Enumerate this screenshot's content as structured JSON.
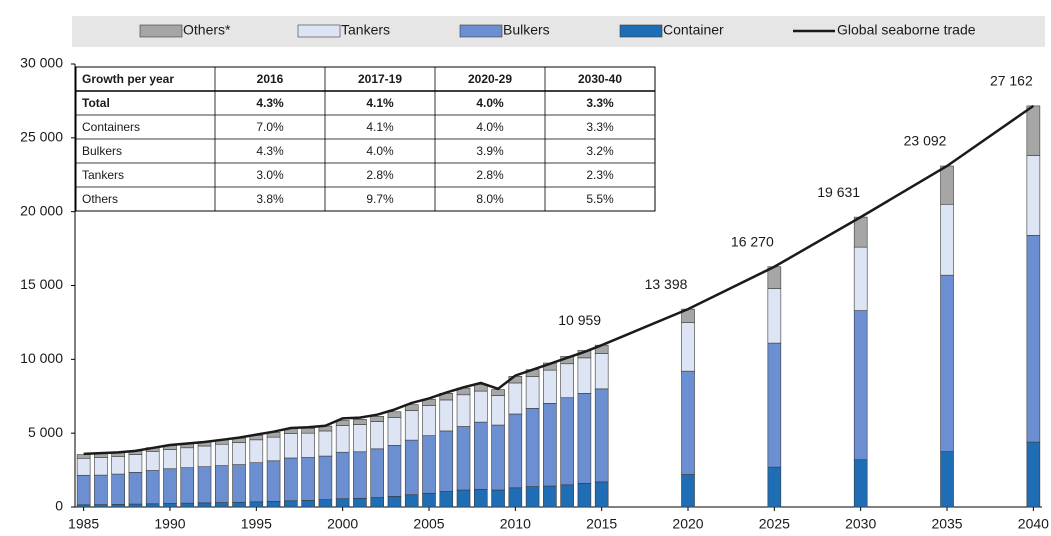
{
  "chart_data": {
    "type": "stacked_bar_line",
    "legend": "top",
    "x": [
      1985,
      1986,
      1987,
      1988,
      1989,
      1990,
      1991,
      1992,
      1993,
      1994,
      1995,
      1996,
      1997,
      1998,
      1999,
      2000,
      2001,
      2002,
      2003,
      2004,
      2005,
      2006,
      2007,
      2008,
      2009,
      2010,
      2011,
      2012,
      2013,
      2014,
      2015,
      2020,
      2025,
      2030,
      2035,
      2040
    ],
    "xlim": [
      1984.5,
      2040.5
    ],
    "xticks": [
      1985,
      1990,
      1995,
      2000,
      2005,
      2010,
      2015,
      2020,
      2025,
      2030,
      2035,
      2040
    ],
    "ylim": [
      0,
      30000
    ],
    "yticks": [
      0,
      {
        "value": 5000,
        "label": "5 000"
      },
      {
        "value": 10000,
        "label": "10 000"
      },
      {
        "value": 15000,
        "label": "15 000"
      },
      {
        "value": 20000,
        "label": "20 000"
      },
      {
        "value": 25000,
        "label": "25 000"
      },
      {
        "value": 30000,
        "label": "30 000"
      }
    ],
    "series": [
      {
        "name": "Container",
        "color": "#1f6db5",
        "values": [
          150,
          160,
          180,
          200,
          220,
          240,
          260,
          280,
          300,
          320,
          350,
          380,
          420,
          450,
          500,
          560,
          590,
          640,
          720,
          830,
          930,
          1050,
          1150,
          1200,
          1150,
          1300,
          1380,
          1420,
          1500,
          1600,
          1700,
          2200,
          2700,
          3200,
          3750,
          4400
        ]
      },
      {
        "name": "Bulkers",
        "color": "#6b8fd0",
        "values": [
          2000,
          2000,
          2050,
          2150,
          2250,
          2350,
          2400,
          2450,
          2500,
          2550,
          2650,
          2750,
          2900,
          2900,
          2950,
          3150,
          3150,
          3300,
          3450,
          3700,
          3900,
          4100,
          4300,
          4550,
          4400,
          5000,
          5300,
          5600,
          5900,
          6100,
          6300,
          7000,
          8400,
          10100,
          11950,
          14000
        ]
      },
      {
        "name": "Tankers",
        "color": "#dde5f4",
        "values": [
          1150,
          1200,
          1200,
          1200,
          1300,
          1300,
          1350,
          1400,
          1450,
          1500,
          1550,
          1600,
          1650,
          1650,
          1700,
          1800,
          1850,
          1850,
          1900,
          2000,
          2050,
          2100,
          2150,
          2100,
          2000,
          2100,
          2150,
          2250,
          2300,
          2400,
          2400,
          3300,
          3700,
          4300,
          4800,
          5400
        ]
      },
      {
        "name": "Others*",
        "color": "#a6a6a6",
        "values": [
          250,
          250,
          250,
          250,
          250,
          280,
          280,
          280,
          300,
          300,
          300,
          320,
          330,
          330,
          330,
          350,
          350,
          350,
          380,
          400,
          420,
          450,
          450,
          450,
          400,
          450,
          470,
          480,
          500,
          500,
          559,
          900,
          1470,
          2031,
          2592,
          3362
        ]
      },
      {
        "name": "Global seaborne trade",
        "color": "#1a1a1a",
        "kind": "line",
        "values": [
          3600,
          3650,
          3700,
          3800,
          4000,
          4200,
          4300,
          4400,
          4550,
          4700,
          4900,
          5100,
          5350,
          5400,
          5500,
          6000,
          6050,
          6250,
          6600,
          7050,
          7350,
          7750,
          8100,
          8400,
          8000,
          8900,
          9300,
          9700,
          10100,
          10500,
          10959,
          13398,
          16270,
          19631,
          23092,
          27162
        ],
        "value_labels": [
          null,
          null,
          null,
          null,
          null,
          null,
          null,
          null,
          null,
          null,
          null,
          null,
          null,
          null,
          null,
          null,
          null,
          null,
          null,
          null,
          null,
          null,
          null,
          null,
          null,
          null,
          null,
          null,
          null,
          null,
          "10 959",
          "13 398",
          "16 270",
          "19 631",
          "23 092",
          "27 162"
        ]
      }
    ]
  },
  "table": {
    "columns": [
      "Growth per year",
      "2016",
      "2017-19",
      "2020-29",
      "2030-40"
    ],
    "rows": [
      [
        "Total",
        "4.3%",
        "4.1%",
        "4.0%",
        "3.3%"
      ],
      [
        "Containers",
        "7.0%",
        "4.1%",
        "4.0%",
        "3.3%"
      ],
      [
        "Bulkers",
        "4.3%",
        "4.0%",
        "3.9%",
        "3.2%"
      ],
      [
        "Tankers",
        "3.0%",
        "2.8%",
        "2.8%",
        "2.3%"
      ],
      [
        "Others",
        "3.8%",
        "9.7%",
        "8.0%",
        "5.5%"
      ]
    ]
  }
}
